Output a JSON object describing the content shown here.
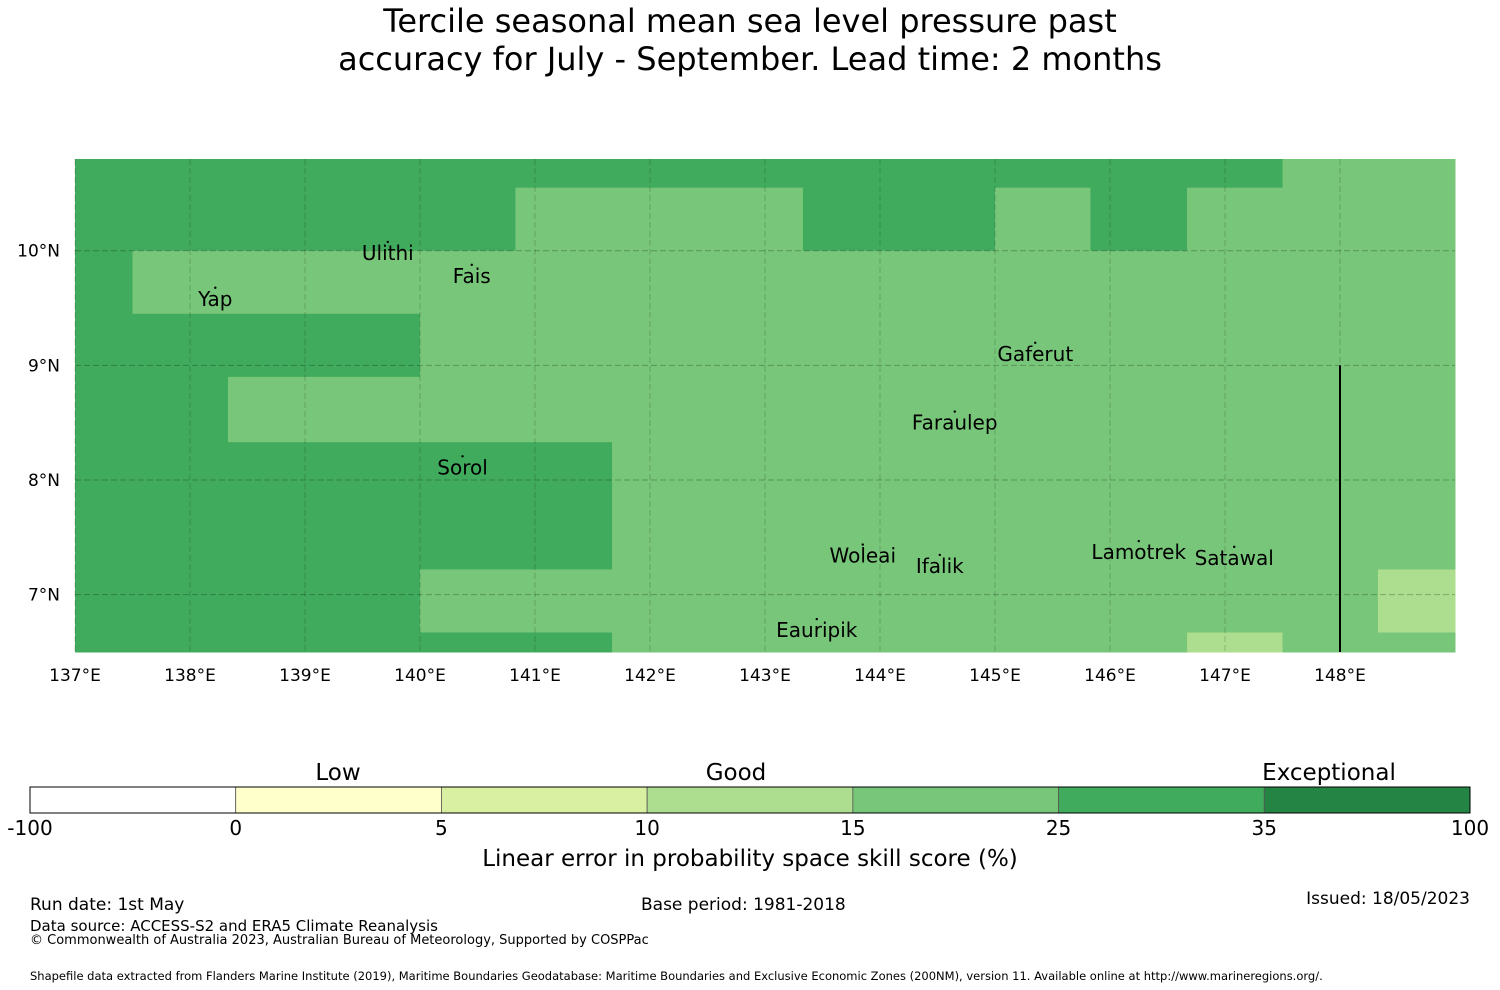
{
  "title": {
    "line1": "Tercile seasonal mean sea level pressure past",
    "line2": "accuracy for July - September. Lead time: 2 months"
  },
  "map": {
    "lon_range": [
      137.0,
      149.0
    ],
    "lat_range": [
      6.5,
      10.8
    ],
    "x_ticks": [
      137,
      138,
      139,
      140,
      141,
      142,
      143,
      144,
      145,
      146,
      147,
      148
    ],
    "x_tick_labels": [
      "137°E",
      "138°E",
      "139°E",
      "140°E",
      "141°E",
      "142°E",
      "143°E",
      "144°E",
      "145°E",
      "146°E",
      "147°E",
      "148°E"
    ],
    "y_ticks": [
      7,
      8,
      9,
      10
    ],
    "y_tick_labels": [
      "7°N",
      "8°N",
      "9°N",
      "10°N"
    ],
    "gridlines": true,
    "colors": {
      "c25": "#41ab5d",
      "c15": "#78c679",
      "c10": "#addd8e"
    },
    "cells": [
      {
        "lon": [
          137.0,
          147.5
        ],
        "lat": [
          10.55,
          10.8
        ],
        "cat": "c25"
      },
      {
        "lon": [
          147.5,
          149.0
        ],
        "lat": [
          10.55,
          10.8
        ],
        "cat": "c15"
      },
      {
        "lon": [
          137.0,
          140.83
        ],
        "lat": [
          10.0,
          10.55
        ],
        "cat": "c25"
      },
      {
        "lon": [
          140.83,
          143.33
        ],
        "lat": [
          10.0,
          10.55
        ],
        "cat": "c15"
      },
      {
        "lon": [
          143.33,
          145.0
        ],
        "lat": [
          10.0,
          10.55
        ],
        "cat": "c25"
      },
      {
        "lon": [
          145.0,
          145.83
        ],
        "lat": [
          10.0,
          10.55
        ],
        "cat": "c15"
      },
      {
        "lon": [
          145.83,
          146.67
        ],
        "lat": [
          10.0,
          10.55
        ],
        "cat": "c25"
      },
      {
        "lon": [
          146.67,
          149.0
        ],
        "lat": [
          10.0,
          10.55
        ],
        "cat": "c15"
      },
      {
        "lon": [
          137.0,
          137.5
        ],
        "lat": [
          9.45,
          10.0
        ],
        "cat": "c25"
      },
      {
        "lon": [
          137.5,
          149.0
        ],
        "lat": [
          9.45,
          10.0
        ],
        "cat": "c15"
      },
      {
        "lon": [
          137.0,
          140.0
        ],
        "lat": [
          8.9,
          9.45
        ],
        "cat": "c25"
      },
      {
        "lon": [
          140.0,
          149.0
        ],
        "lat": [
          8.9,
          9.45
        ],
        "cat": "c15"
      },
      {
        "lon": [
          137.0,
          138.33
        ],
        "lat": [
          8.33,
          8.9
        ],
        "cat": "c25"
      },
      {
        "lon": [
          138.33,
          149.0
        ],
        "lat": [
          8.33,
          8.9
        ],
        "cat": "c15"
      },
      {
        "lon": [
          137.0,
          141.67
        ],
        "lat": [
          7.22,
          8.33
        ],
        "cat": "c25"
      },
      {
        "lon": [
          141.67,
          149.0
        ],
        "lat": [
          7.22,
          8.33
        ],
        "cat": "c15"
      },
      {
        "lon": [
          137.0,
          140.0
        ],
        "lat": [
          6.67,
          7.22
        ],
        "cat": "c25"
      },
      {
        "lon": [
          140.0,
          148.33
        ],
        "lat": [
          6.67,
          7.22
        ],
        "cat": "c15"
      },
      {
        "lon": [
          148.33,
          149.0
        ],
        "lat": [
          6.67,
          7.22
        ],
        "cat": "c10"
      },
      {
        "lon": [
          137.0,
          141.67
        ],
        "lat": [
          6.5,
          6.67
        ],
        "cat": "c25"
      },
      {
        "lon": [
          141.67,
          146.67
        ],
        "lat": [
          6.5,
          6.67
        ],
        "cat": "c15"
      },
      {
        "lon": [
          146.67,
          147.5
        ],
        "lat": [
          6.5,
          6.67
        ],
        "cat": "c10"
      },
      {
        "lon": [
          147.5,
          149.0
        ],
        "lat": [
          6.5,
          6.67
        ],
        "cat": "c15"
      }
    ],
    "boundary_line": {
      "lon": 148.0,
      "lat": [
        6.5,
        9.0
      ]
    },
    "places": [
      {
        "name": "Ulithi",
        "lon": 139.72,
        "lat": 9.92
      },
      {
        "name": "Fais",
        "lon": 140.45,
        "lat": 9.72
      },
      {
        "name": "Yap",
        "lon": 138.22,
        "lat": 9.52
      },
      {
        "name": "Gaferut",
        "lon": 145.35,
        "lat": 9.04
      },
      {
        "name": "Faraulep",
        "lon": 144.65,
        "lat": 8.44
      },
      {
        "name": "Sorol",
        "lon": 140.37,
        "lat": 8.05
      },
      {
        "name": "Woleai",
        "lon": 143.85,
        "lat": 7.28
      },
      {
        "name": "Ifalik",
        "lon": 144.52,
        "lat": 7.19
      },
      {
        "name": "Lamotrek",
        "lon": 146.25,
        "lat": 7.31
      },
      {
        "name": "Satawal",
        "lon": 147.08,
        "lat": 7.26
      },
      {
        "name": "Eauripik",
        "lon": 143.45,
        "lat": 6.63
      }
    ]
  },
  "colorbar": {
    "categories": [
      "Low",
      "Good",
      "Exceptional"
    ],
    "bins": [
      {
        "from": "-100",
        "to": "0",
        "color": "#ffffff"
      },
      {
        "from": "0",
        "to": "5",
        "color": "#ffffcc"
      },
      {
        "from": "5",
        "to": "10",
        "color": "#d9f0a3"
      },
      {
        "from": "10",
        "to": "15",
        "color": "#addd8e"
      },
      {
        "from": "15",
        "to": "25",
        "color": "#78c679"
      },
      {
        "from": "25",
        "to": "35",
        "color": "#41ab5d"
      },
      {
        "from": "35",
        "to": "100",
        "color": "#238443"
      }
    ],
    "ticks": [
      "-100",
      "0",
      "5",
      "10",
      "15",
      "25",
      "35",
      "100"
    ],
    "label": "Linear error in probability space skill score (%)"
  },
  "footer": {
    "run_date": "Run date: 1st May",
    "data_source": "Data source: ACCESS-S2 and ERA5 Climate Reanalysis",
    "copyright": "© Commonwealth of Australia 2023, Australian Bureau of Meteorology, Supported by COSPPac",
    "base_period": "Base period: 1981-2018",
    "issued": "Issued: 18/05/2023",
    "shapefile": "Shapefile data extracted from Flanders Marine Institute (2019), Maritime Boundaries Geodatabase: Maritime Boundaries and Exclusive Economic Zones (200NM), version 11. Available online at http://www.marineregions.org/."
  }
}
